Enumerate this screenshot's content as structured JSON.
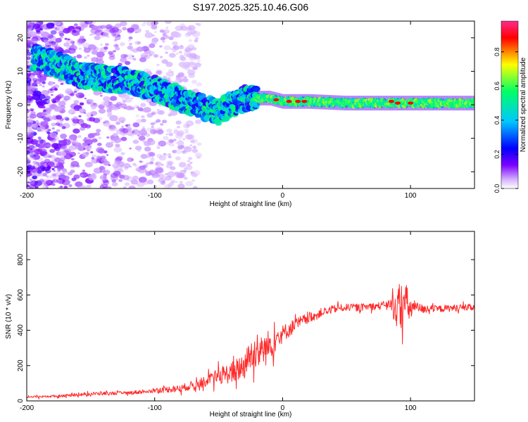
{
  "title": "S197.2025.325.10.46.G06",
  "colors": {
    "snr_line": "#ff2a2a",
    "axis": "#000000",
    "background": "#ffffff",
    "colorbar_stops": [
      "#ffffff",
      "#d9b8ff",
      "#7b00ff",
      "#0000ff",
      "#00c8ff",
      "#00ff66",
      "#ffff00",
      "#ff0000",
      "#ff2b8c"
    ]
  },
  "chart_data": [
    {
      "type": "heatmap",
      "title": "S197.2025.325.10.46.G06",
      "xlabel": "Height of straight line (km)",
      "ylabel": "Frequency (Hz)",
      "xlim": [
        -200,
        150
      ],
      "ylim": [
        -25,
        25
      ],
      "xticks": [
        -200,
        -100,
        0,
        100
      ],
      "yticks": [
        -20,
        -10,
        0,
        10,
        20
      ],
      "colorbar": {
        "label": "Normalized spectral amplitude",
        "range": [
          0,
          0.98
        ],
        "ticks": [
          0.0,
          0.2,
          0.4,
          0.6,
          0.8
        ]
      },
      "ridge": {
        "x": [
          -190,
          -170,
          -160,
          -140,
          -120,
          -100,
          -90,
          -80,
          -70,
          -60,
          -50,
          -40,
          -30,
          -20,
          -10,
          0,
          10,
          20,
          50,
          90,
          110,
          150
        ],
        "y": [
          14,
          11,
          9,
          8,
          7,
          5,
          3,
          2,
          0,
          -1,
          -2,
          0,
          2,
          2,
          2,
          1,
          1,
          1,
          0.5,
          0.5,
          0.5,
          0.5
        ]
      }
    },
    {
      "type": "line",
      "xlabel": "Height of straight line (km)",
      "ylabel": "SNR (10 * v/v)",
      "xlim": [
        -200,
        150
      ],
      "ylim": [
        0,
        960
      ],
      "xticks": [
        -200,
        -100,
        0,
        100
      ],
      "yticks": [
        0,
        200,
        400,
        600,
        800
      ],
      "series": [
        {
          "name": "SNR",
          "envelope_x": [
            -200,
            -170,
            -150,
            -120,
            -100,
            -80,
            -60,
            -50,
            -40,
            -30,
            -25,
            -20,
            -15,
            -10,
            -5,
            0,
            10,
            20,
            30,
            40,
            50,
            60,
            70,
            80,
            85,
            90,
            95,
            100,
            105,
            110,
            120,
            130,
            150
          ],
          "envelope_mean": [
            20,
            30,
            40,
            45,
            60,
            70,
            110,
            140,
            160,
            200,
            260,
            300,
            280,
            320,
            360,
            380,
            430,
            470,
            500,
            520,
            530,
            530,
            535,
            540,
            545,
            520,
            560,
            520,
            530,
            520,
            520,
            525,
            530
          ],
          "envelope_spread": [
            12,
            15,
            20,
            20,
            30,
            40,
            60,
            90,
            120,
            160,
            180,
            220,
            200,
            180,
            150,
            100,
            80,
            60,
            50,
            45,
            40,
            40,
            40,
            50,
            90,
            250,
            280,
            140,
            60,
            50,
            40,
            40,
            40
          ]
        }
      ]
    }
  ]
}
